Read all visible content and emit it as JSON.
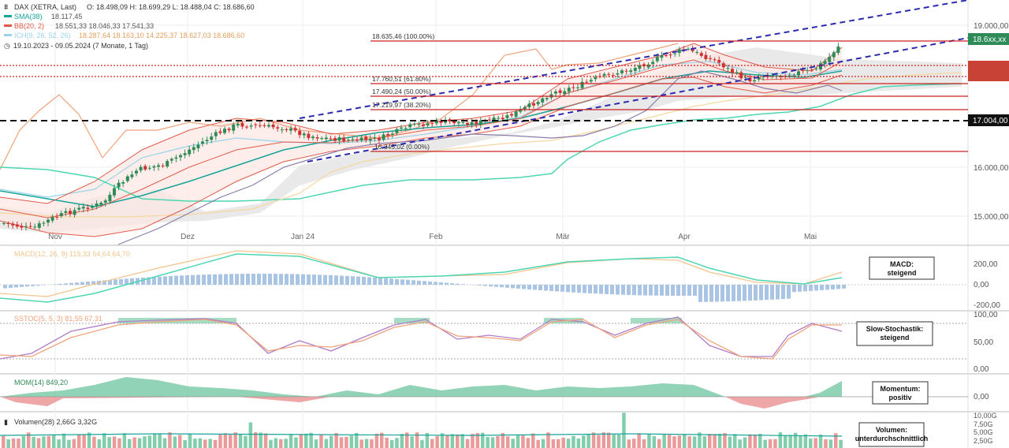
{
  "header": {
    "title": "DAX (XETRA, Last)",
    "ohlc": "O: 18.498,09  H: 18.699,29  L: 18.488,04  C: 18.686,60",
    "date_range": "19.10.2023 - 09.05.2024  (7 Monate, 1 Tag)"
  },
  "legend": [
    {
      "label": "SMA(38)",
      "values": "18.117,45",
      "color": "#17a398"
    },
    {
      "label": "BB(20, 2)",
      "values": "18.551,33  18.046,33  17.541,33",
      "color": "#e05a4a"
    },
    {
      "label": "ICH(9, 26, 52, 26)",
      "values": "18.287,64  18.163,10  14.225,37  18.627,03  18.686,60",
      "color": "#9ad3e8"
    }
  ],
  "colors": {
    "up": "#2e8b57",
    "down": "#cc3333",
    "channel": "#2b2bb0",
    "level_line": "#cc2222",
    "price_tag": "#2e8b57",
    "sma": "#17a398",
    "boll": "#e05a4a",
    "cloud": "#d9d9d9",
    "macd": "#4dd6b2",
    "signal": "#f2c48d",
    "hist": "#aac4e4",
    "stoch_k": "#b07cc6",
    "stoch_d": "#f0a27a",
    "mom_pos": "#6cc49d",
    "mom_neg": "#e88888",
    "vol_up": "#6cc49d",
    "vol_down": "#e88888"
  },
  "price_axis": {
    "ticks": [
      "19.000,00",
      "18.6xx,xx",
      "17.004,00",
      "16.000,00",
      "15.000,00"
    ],
    "last_price_tag": "18.6xx,xx",
    "black_level_tag": "17.004,00"
  },
  "x_labels": [
    "Nov",
    "Dez",
    "Jan 24",
    "Feb",
    "Mär",
    "Apr",
    "Mai"
  ],
  "fib_levels": [
    {
      "label": "18.635,46 (100.00%)",
      "value": 18635.46
    },
    {
      "label": "17.760,51 (61.80%)",
      "value": 17760.51
    },
    {
      "label": "17.490,24 (50.00%)",
      "value": 17490.24
    },
    {
      "label": "17.219,97 (38.20%)",
      "value": 17219.97
    },
    {
      "label": "16.345,02 (0.00%)",
      "value": 16345.02
    }
  ],
  "panels": {
    "macd": {
      "legend": "MACD(12, 26, 9)  119,33  54,64  64,70",
      "note": "MACD:\nsteigend",
      "ticks": [
        "200,00",
        "0,00",
        "-200,00"
      ]
    },
    "stoch": {
      "legend": "SSTOC(5, 5, 3)  81,55  67,31",
      "note": "Slow-Stochastik:\nsteigend",
      "ticks": [
        "100,00",
        "50,00",
        "0,00"
      ]
    },
    "mom": {
      "legend": "MOM(14)  849,20",
      "note": "Momentum:\npositiv",
      "ticks": [
        "0,00"
      ]
    },
    "vol": {
      "legend": "Volumen(28)  2,66G  3,32G",
      "note": "Volumen:\nunterdurchschnittlich",
      "ticks": [
        "10,00G",
        "7,50G",
        "5,00G",
        "2,50G"
      ]
    }
  },
  "chart_data": {
    "type": "line",
    "title": "DAX (XETRA, Last)",
    "xlabel": "",
    "ylabel": "",
    "x": [
      "Nov",
      "Dez",
      "Jan 24",
      "Feb",
      "Mär",
      "Apr",
      "Mai"
    ],
    "ylim": [
      14700,
      19300
    ],
    "series": [
      {
        "name": "DAX",
        "values": [
          14800,
          16100,
          16700,
          16900,
          17700,
          18400,
          18686.6
        ]
      },
      {
        "name": "SMA(38)",
        "values": [
          15500,
          15400,
          16200,
          16600,
          17000,
          17700,
          18117.45
        ]
      }
    ],
    "price_levels": [
      19000,
      17004,
      16000,
      15000
    ]
  }
}
